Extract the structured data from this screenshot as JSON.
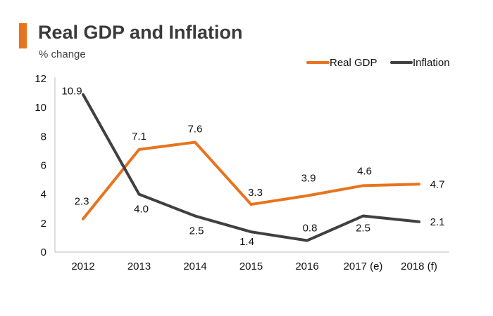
{
  "header": {
    "title": "Real GDP and Inflation",
    "subtitle": "% change"
  },
  "colors": {
    "accent": "#e8731f",
    "real_gdp": "#e8731f",
    "inflation": "#404040",
    "axis": "#bfbfbf"
  },
  "chart_data": {
    "type": "line",
    "title": "Real GDP and Inflation",
    "ylabel": "% change",
    "xlabel": "",
    "categories": [
      "2012",
      "2013",
      "2014",
      "2015",
      "2016",
      "2017 (e)",
      "2018 (f)"
    ],
    "ylim": [
      0,
      12
    ],
    "yticks": [
      0,
      2,
      4,
      6,
      8,
      10,
      12
    ],
    "grid": false,
    "legend_position": "top-right",
    "series": [
      {
        "name": "Real GDP",
        "values": [
          2.3,
          7.1,
          7.6,
          3.3,
          3.9,
          4.6,
          4.7
        ],
        "labels": [
          "2.3",
          "7.1",
          "7.6",
          "3.3",
          "3.9",
          "4.6",
          "4.7"
        ]
      },
      {
        "name": "Inflation",
        "values": [
          10.9,
          4.0,
          2.5,
          1.4,
          0.8,
          2.5,
          2.1
        ],
        "labels": [
          "10.9",
          "4.0",
          "2.5",
          "1.4",
          "0.8",
          "2.5",
          "2.1"
        ]
      }
    ]
  }
}
